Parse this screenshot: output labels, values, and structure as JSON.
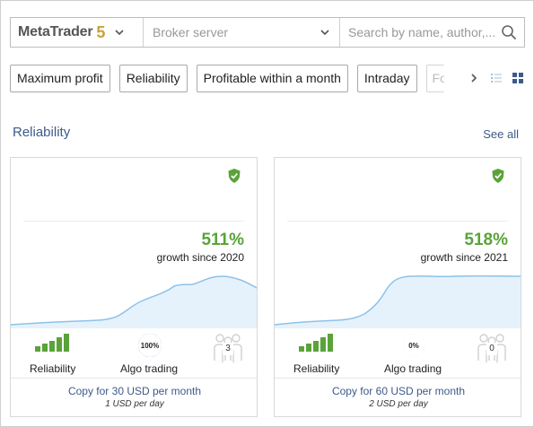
{
  "colors": {
    "accent": "#3d5a8a",
    "growth": "#5aa33a",
    "gold": "#c8a13a",
    "chart_line": "#8cc2ea",
    "chart_fill": "#e6f2fb"
  },
  "filters": {
    "platform": {
      "name": "MetaTrader",
      "version": "5",
      "icon": "chevron-down-icon"
    },
    "broker": {
      "placeholder": "Broker server",
      "icon": "chevron-down-icon"
    },
    "search": {
      "placeholder": "Search by name, author,...",
      "value": "",
      "icon": "search-icon"
    }
  },
  "chips": [
    {
      "label": "Maximum profit"
    },
    {
      "label": "Reliability"
    },
    {
      "label": "Profitable within a month"
    },
    {
      "label": "Intraday"
    },
    {
      "label": "Fo"
    }
  ],
  "toolbar": {
    "next_icon": "chevron-right-icon",
    "list_icon": "list-view-icon",
    "grid_icon": "grid-view-icon",
    "grid_active": true
  },
  "section": {
    "title": "Reliability",
    "see_all": "See all"
  },
  "cards": [
    {
      "verified_icon": "shield-check-icon",
      "growth": "511%",
      "growth_label": "growth since 2020",
      "reliability_label": "Reliability",
      "reliability_bars": 5,
      "algo_value": "100%",
      "algo_fraction": 1.0,
      "algo_label": "Algo trading",
      "subscribers": "3",
      "copy_label": "Copy for 30 USD per month",
      "per_day": "1 USD per day"
    },
    {
      "verified_icon": "shield-check-icon",
      "growth": "518%",
      "growth_label": "growth since 2021",
      "reliability_label": "Reliability",
      "reliability_bars": 5,
      "algo_value": "0%",
      "algo_fraction": 0,
      "algo_label": "Algo trading",
      "subscribers": "0",
      "copy_label": "Copy for 60 USD per month",
      "per_day": "2 USD per day"
    }
  ]
}
